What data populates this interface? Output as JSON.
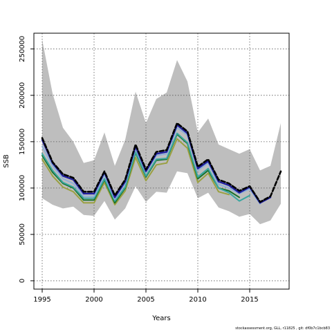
{
  "chart_data": {
    "type": "line",
    "xlabel": "Years",
    "ylabel": "SSB",
    "xlim": [
      1994.2,
      2018.8
    ],
    "ylim": [
      -9000,
      267000
    ],
    "x_ticks": [
      1995,
      2000,
      2005,
      2010,
      2015
    ],
    "y_ticks": [
      0,
      50000,
      100000,
      150000,
      200000,
      250000
    ],
    "y_tick_labels": [
      "0",
      "50000",
      "100000",
      "150000",
      "200000",
      "250000"
    ],
    "grid": true,
    "confidence_band": {
      "color": "#bebebe",
      "x": [
        1995,
        1996,
        1997,
        1998,
        1999,
        2000,
        2001,
        2002,
        2003,
        2004,
        2005,
        2006,
        2007,
        2008,
        2009,
        2010,
        2011,
        2012,
        2013,
        2014,
        2015,
        2016,
        2017,
        2018
      ],
      "upper": [
        260000,
        202000,
        165000,
        150000,
        127000,
        130000,
        160000,
        124000,
        152000,
        204000,
        170000,
        196000,
        203000,
        238000,
        215000,
        160000,
        175000,
        147000,
        142000,
        137000,
        142000,
        119000,
        124000,
        170000
      ],
      "lower": [
        89000,
        82000,
        78000,
        80000,
        71000,
        70000,
        86000,
        66000,
        78000,
        102000,
        85000,
        96000,
        95000,
        118000,
        116000,
        89000,
        95000,
        79000,
        75000,
        69000,
        72000,
        61000,
        65000,
        83000
      ]
    },
    "series": [
      {
        "color": "#000000",
        "dashed": true,
        "width": 2.6,
        "x": [
          1995,
          1996,
          1997,
          1998,
          1999,
          2000,
          2001,
          2002,
          2003,
          2004,
          2005,
          2006,
          2007,
          2008,
          2009,
          2010,
          2011,
          2012,
          2013,
          2014,
          2015,
          2016,
          2017,
          2018
        ],
        "values": [
          154000,
          128000,
          115000,
          111000,
          96000,
          96000,
          118000,
          92000,
          109000,
          147000,
          120000,
          139000,
          141000,
          170000,
          161000,
          123000,
          131000,
          109000,
          105000,
          97000,
          102000,
          85000,
          91000,
          118000
        ]
      },
      {
        "color": "#1e1e9e",
        "dashed": false,
        "width": 2.4,
        "x": [
          1995,
          1996,
          1997,
          1998,
          1999,
          2000,
          2001,
          2002,
          2003,
          2004,
          2005,
          2006,
          2007,
          2008,
          2009,
          2010,
          2011,
          2012,
          2013,
          2014,
          2015,
          2016,
          2017
        ],
        "values": [
          152000,
          127000,
          113000,
          109000,
          94000,
          94000,
          117000,
          90000,
          107000,
          145000,
          118000,
          137000,
          139000,
          168000,
          159000,
          121000,
          129000,
          107000,
          103000,
          95000,
          101000,
          84000,
          90000
        ]
      },
      {
        "color": "#8fb0d8",
        "dashed": false,
        "width": 2.0,
        "x": [
          1995,
          1996,
          1997,
          1998,
          1999,
          2000,
          2001,
          2002,
          2003,
          2004,
          2005,
          2006,
          2007,
          2008,
          2009,
          2010,
          2011,
          2012,
          2013,
          2014,
          2015,
          2016
        ],
        "values": [
          145000,
          124000,
          110000,
          105000,
          91000,
          91000,
          114000,
          88000,
          105000,
          143000,
          117000,
          135000,
          137000,
          165000,
          157000,
          119000,
          127000,
          104000,
          100000,
          94000,
          99000,
          83000
        ]
      },
      {
        "color": "#3aa6a0",
        "dashed": false,
        "width": 2.0,
        "x": [
          1995,
          1996,
          1997,
          1998,
          1999,
          2000,
          2001,
          2002,
          2003,
          2004,
          2005,
          2006,
          2007,
          2008,
          2009,
          2010,
          2011,
          2012,
          2013,
          2014,
          2015
        ],
        "values": [
          137000,
          119000,
          106000,
          101000,
          89000,
          89000,
          110000,
          86000,
          101000,
          139000,
          113000,
          131000,
          132000,
          159000,
          149000,
          112000,
          121000,
          100000,
          95000,
          86000,
          92000
        ]
      },
      {
        "color": "#17722a",
        "dashed": false,
        "width": 2.0,
        "x": [
          1995,
          1996,
          1997,
          1998,
          1999,
          2000,
          2001,
          2002,
          2003,
          2004,
          2005,
          2006,
          2007,
          2008,
          2009,
          2010,
          2011,
          2012,
          2013,
          2014
        ],
        "values": [
          135000,
          117000,
          105000,
          100000,
          87000,
          87000,
          109000,
          84000,
          100000,
          138000,
          112000,
          130000,
          131000,
          158000,
          148000,
          110000,
          119000,
          100000,
          97000,
          90000
        ]
      },
      {
        "color": "#9aa040",
        "dashed": false,
        "width": 2.0,
        "x": [
          1995,
          1996,
          1997,
          1998,
          1999,
          2000,
          2001,
          2002,
          2003,
          2004,
          2005,
          2006,
          2007,
          2008,
          2009,
          2010,
          2011,
          2012,
          2013
        ],
        "values": [
          131000,
          113000,
          101000,
          96000,
          84000,
          84000,
          106000,
          82000,
          97000,
          133000,
          108000,
          125000,
          127000,
          153000,
          143000,
          106000,
          116000,
          96000,
          93000
        ]
      }
    ]
  },
  "footer_text": "stockassessment.org, GLL, r11825 , git: df0b7c1bcb83"
}
